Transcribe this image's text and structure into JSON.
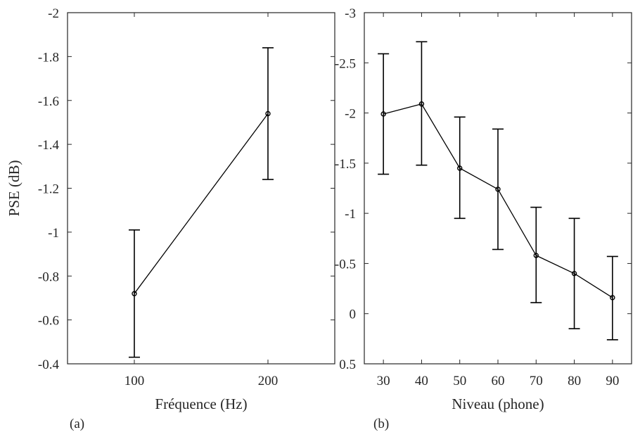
{
  "chart_data": [
    {
      "type": "line",
      "panel_label": "(a)",
      "xlabel": "Fréquence (Hz)",
      "ylabel": "PSE (dB)",
      "xlim": [
        50,
        250
      ],
      "ylim": [
        -0.4,
        -2
      ],
      "y_reversed": true,
      "x_ticks": [
        100,
        200
      ],
      "x_tick_labels": [
        "100",
        "200"
      ],
      "y_ticks": [
        -2,
        -1.8,
        -1.6,
        -1.4,
        -1.2,
        -1,
        -0.8,
        -0.6,
        -0.4
      ],
      "y_tick_labels": [
        "-2",
        "-1.8",
        "-1.6",
        "-1.4",
        "-1.2",
        "-1",
        "-0.8",
        "-0.6",
        "-0.4"
      ],
      "grid": true,
      "x": [
        100,
        200
      ],
      "values": [
        -0.72,
        -1.54
      ],
      "err_low": [
        -0.43,
        -1.24
      ],
      "err_high": [
        -1.01,
        -1.84
      ]
    },
    {
      "type": "line",
      "panel_label": "(b)",
      "xlabel": "Niveau (phone)",
      "ylabel": "",
      "xlim": [
        25,
        95
      ],
      "ylim": [
        0.5,
        -3
      ],
      "y_reversed": true,
      "x_ticks": [
        30,
        40,
        50,
        60,
        70,
        80,
        90
      ],
      "x_tick_labels": [
        "30",
        "40",
        "50",
        "60",
        "70",
        "80",
        "90"
      ],
      "y_ticks": [
        -3,
        -2.5,
        -2,
        -1.5,
        -1,
        -0.5,
        0,
        0.5
      ],
      "y_tick_labels": [
        "-3",
        "-2.5",
        "-2",
        "-1.5",
        "-1",
        "-0.5",
        "0",
        "0.5"
      ],
      "grid": true,
      "x": [
        30,
        40,
        50,
        60,
        70,
        80,
        90
      ],
      "values": [
        -1.99,
        -2.09,
        -1.45,
        -1.24,
        -0.58,
        -0.4,
        -0.16
      ],
      "err_low": [
        -1.39,
        -1.48,
        -0.95,
        -0.64,
        -0.11,
        0.15,
        0.26
      ],
      "err_high": [
        -2.59,
        -2.71,
        -1.96,
        -1.84,
        -1.06,
        -0.95,
        -0.57
      ]
    }
  ]
}
